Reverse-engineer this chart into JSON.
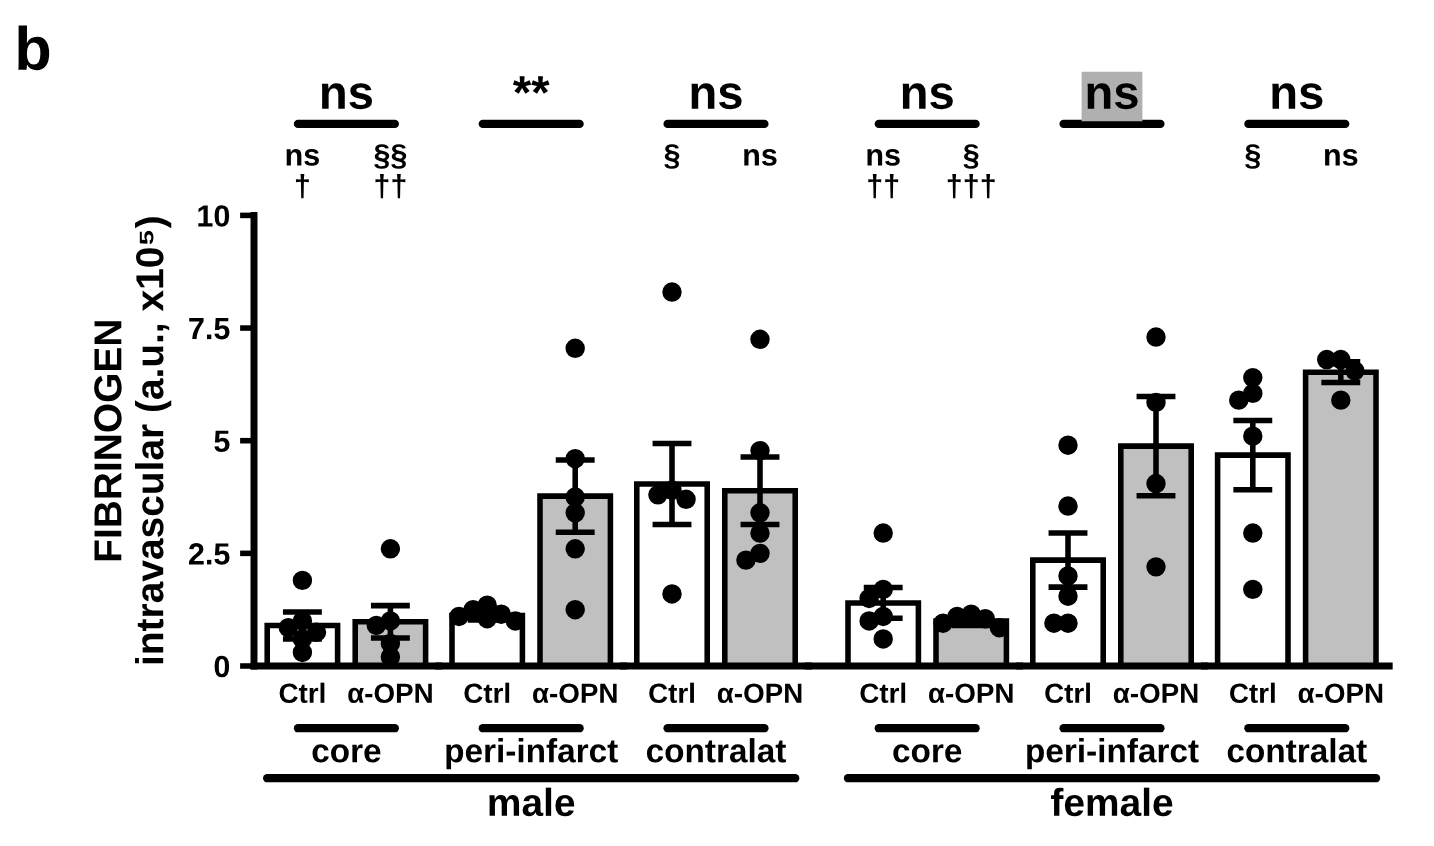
{
  "chart_data": [
    {
      "type": "bar",
      "title": "ns",
      "xlabel": "core",
      "ylabel": "FIBRINOGEN\nintravascular (a.u., x10⁵)",
      "categories": [
        "Ctrl",
        "α-OPN"
      ],
      "ylim": [
        0,
        10
      ],
      "yticks": [
        0,
        2.5,
        5,
        7.5,
        10
      ],
      "grid": false,
      "series": [
        {
          "type": "bar",
          "colors": [
            "#ffffff",
            "#c0c0c0"
          ],
          "values": [
            0.9,
            0.98
          ],
          "errors": [
            0.3,
            0.36
          ]
        },
        {
          "type": "scatter",
          "color": "#000000",
          "marker": "circle",
          "x": [
            "Ctrl",
            "Ctrl",
            "Ctrl",
            "Ctrl",
            "Ctrl",
            "Ctrl",
            "α-OPN",
            "α-OPN",
            "α-OPN",
            "α-OPN",
            "α-OPN"
          ],
          "values": [
            1.9,
            1.0,
            0.85,
            0.75,
            0.6,
            0.3,
            2.6,
            1.0,
            0.9,
            0.5,
            0.2
          ]
        }
      ],
      "annotations": [
        "b",
        "ns\n†",
        "§§\n††"
      ]
    },
    {
      "type": "bar",
      "title": "**",
      "xlabel": "peri-infarct",
      "categories": [
        "Ctrl",
        "α-OPN"
      ],
      "ylim": [
        0,
        10
      ],
      "tick_labels": "x",
      "grid": false,
      "series": [
        {
          "type": "bar",
          "colors": [
            "#ffffff",
            "#c0c0c0"
          ],
          "values": [
            1.12,
            3.77
          ],
          "errors": [
            0.1,
            0.8
          ]
        },
        {
          "type": "scatter",
          "color": "#000000",
          "marker": "circle",
          "x": [
            "Ctrl",
            "Ctrl",
            "Ctrl",
            "Ctrl",
            "Ctrl",
            "Ctrl",
            "α-OPN",
            "α-OPN",
            "α-OPN",
            "α-OPN",
            "α-OPN",
            "α-OPN"
          ],
          "values": [
            1.35,
            1.25,
            1.15,
            1.1,
            1.05,
            1.0,
            7.05,
            4.6,
            3.75,
            3.4,
            2.6,
            1.25
          ]
        }
      ],
      "annotations": [
        "male"
      ]
    },
    {
      "type": "bar",
      "title": "ns",
      "xlabel": "contralat",
      "categories": [
        "Ctrl",
        "α-OPN"
      ],
      "ylim": [
        0,
        10
      ],
      "tick_labels": "x",
      "grid": false,
      "series": [
        {
          "type": "bar",
          "colors": [
            "#ffffff",
            "#c0c0c0"
          ],
          "values": [
            4.04,
            3.89
          ],
          "errors": [
            0.9,
            0.75
          ]
        },
        {
          "type": "scatter",
          "color": "#000000",
          "marker": "circle",
          "x": [
            "Ctrl",
            "Ctrl",
            "Ctrl",
            "Ctrl",
            "Ctrl",
            "α-OPN",
            "α-OPN",
            "α-OPN",
            "α-OPN",
            "α-OPN",
            "α-OPN"
          ],
          "values": [
            8.3,
            3.9,
            3.8,
            3.7,
            1.6,
            7.25,
            4.78,
            3.4,
            2.95,
            2.5,
            2.35
          ]
        }
      ],
      "annotations": [
        "§",
        "ns"
      ]
    },
    {
      "type": "bar",
      "title": "ns",
      "xlabel": "core",
      "categories": [
        "Ctrl",
        "α-OPN"
      ],
      "ylim": [
        0,
        10
      ],
      "tick_labels": "x",
      "grid": false,
      "series": [
        {
          "type": "bar",
          "colors": [
            "#ffffff",
            "#c0c0c0"
          ],
          "values": [
            1.4,
            1.0
          ],
          "errors": [
            0.34,
            0.1
          ]
        },
        {
          "type": "scatter",
          "color": "#000000",
          "marker": "circle",
          "x": [
            "Ctrl",
            "Ctrl",
            "Ctrl",
            "Ctrl",
            "Ctrl",
            "Ctrl",
            "α-OPN",
            "α-OPN",
            "α-OPN",
            "α-OPN",
            "α-OPN"
          ],
          "values": [
            2.95,
            1.7,
            1.5,
            1.1,
            1.0,
            0.6,
            1.15,
            1.1,
            1.05,
            0.95,
            0.85
          ]
        }
      ],
      "annotations": [
        "ns\n††",
        "§\n†††"
      ]
    },
    {
      "type": "bar",
      "title": "ns",
      "xlabel": "peri-infarct",
      "categories": [
        "Ctrl",
        "α-OPN"
      ],
      "ylim": [
        0,
        10
      ],
      "tick_labels": "x",
      "grid": false,
      "series": [
        {
          "type": "bar",
          "colors": [
            "#ffffff",
            "#c0c0c0"
          ],
          "values": [
            2.35,
            4.88
          ],
          "errors": [
            0.6,
            1.1
          ]
        },
        {
          "type": "scatter",
          "color": "#000000",
          "marker": "circle",
          "x": [
            "Ctrl",
            "Ctrl",
            "Ctrl",
            "Ctrl",
            "Ctrl",
            "Ctrl",
            "α-OPN",
            "α-OPN",
            "α-OPN",
            "α-OPN"
          ],
          "values": [
            4.9,
            3.55,
            2.0,
            1.55,
            0.95,
            0.95,
            7.3,
            5.85,
            4.05,
            2.2
          ]
        }
      ],
      "annotations": [
        "female"
      ]
    },
    {
      "type": "bar",
      "title": "ns",
      "xlabel": "contralat",
      "categories": [
        "Ctrl",
        "α-OPN"
      ],
      "ylim": [
        0,
        10
      ],
      "tick_labels": "x",
      "grid": false,
      "series": [
        {
          "type": "bar",
          "colors": [
            "#ffffff",
            "#c0c0c0"
          ],
          "values": [
            4.68,
            6.52
          ],
          "errors": [
            0.77,
            0.23
          ]
        },
        {
          "type": "scatter",
          "color": "#000000",
          "marker": "circle",
          "x": [
            "Ctrl",
            "Ctrl",
            "Ctrl",
            "Ctrl",
            "Ctrl",
            "Ctrl",
            "α-OPN",
            "α-OPN",
            "α-OPN",
            "α-OPN"
          ],
          "values": [
            6.4,
            6.05,
            5.9,
            5.1,
            2.95,
            1.7,
            6.8,
            6.8,
            6.55,
            5.9
          ]
        }
      ],
      "annotations": [
        "§",
        "ns"
      ]
    }
  ]
}
